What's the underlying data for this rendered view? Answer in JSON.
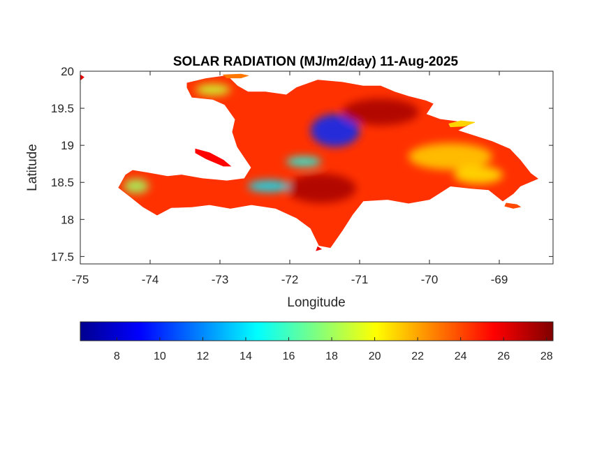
{
  "chart_data": {
    "type": "heatmap",
    "title": "SOLAR RADIATION (MJ/m2/day) 11-Aug-2025",
    "xlabel": "Longitude",
    "ylabel": "Latitude",
    "xlim": [
      -75,
      -68.23
    ],
    "ylim": [
      17.4,
      20
    ],
    "xticks": [
      -75,
      -74,
      -73,
      -72,
      -71,
      -70,
      -69
    ],
    "xtick_labels": [
      "-75",
      "-74",
      "-73",
      "-72",
      "-71",
      "-70",
      "-69"
    ],
    "yticks": [
      17.5,
      18,
      18.5,
      19,
      19.5,
      20
    ],
    "ytick_labels": [
      "17.5",
      "18",
      "18.5",
      "19",
      "19.5",
      "20"
    ],
    "colormap": "jet",
    "colorbar": {
      "placement": "bottom",
      "range": [
        6.3,
        28.3
      ],
      "ticks": [
        8,
        10,
        12,
        14,
        16,
        18,
        20,
        22,
        24,
        26,
        28
      ],
      "tick_labels": [
        "8",
        "10",
        "12",
        "14",
        "16",
        "18",
        "20",
        "22",
        "24",
        "26",
        "28"
      ]
    },
    "regions": [
      {
        "name": "main-island",
        "value": 24.5,
        "outline": [
          [
            -73.47,
            19.84
          ],
          [
            -73.2,
            19.9
          ],
          [
            -72.9,
            19.94
          ],
          [
            -72.75,
            19.8
          ],
          [
            -72.6,
            19.72
          ],
          [
            -72.35,
            19.72
          ],
          [
            -72.05,
            19.68
          ],
          [
            -71.9,
            19.78
          ],
          [
            -71.6,
            19.88
          ],
          [
            -71.25,
            19.85
          ],
          [
            -70.95,
            19.8
          ],
          [
            -70.7,
            19.8
          ],
          [
            -70.5,
            19.72
          ],
          [
            -70.3,
            19.66
          ],
          [
            -70.05,
            19.6
          ],
          [
            -69.95,
            19.56
          ],
          [
            -70.05,
            19.42
          ],
          [
            -69.85,
            19.35
          ],
          [
            -69.6,
            19.32
          ],
          [
            -69.4,
            19.3
          ],
          [
            -69.6,
            19.2
          ],
          [
            -69.1,
            19.05
          ],
          [
            -68.85,
            18.95
          ],
          [
            -68.7,
            18.8
          ],
          [
            -68.55,
            18.62
          ],
          [
            -68.45,
            18.55
          ],
          [
            -68.7,
            18.45
          ],
          [
            -68.8,
            18.35
          ],
          [
            -68.95,
            18.25
          ],
          [
            -69.15,
            18.4
          ],
          [
            -69.4,
            18.42
          ],
          [
            -69.7,
            18.45
          ],
          [
            -70.0,
            18.27
          ],
          [
            -70.3,
            18.22
          ],
          [
            -70.6,
            18.27
          ],
          [
            -70.95,
            18.25
          ],
          [
            -71.1,
            18.07
          ],
          [
            -71.25,
            17.85
          ],
          [
            -71.42,
            17.62
          ],
          [
            -71.58,
            17.65
          ],
          [
            -71.7,
            17.88
          ],
          [
            -71.9,
            18.02
          ],
          [
            -72.2,
            18.15
          ],
          [
            -72.55,
            18.2
          ],
          [
            -72.85,
            18.15
          ],
          [
            -73.15,
            18.2
          ],
          [
            -73.4,
            18.17
          ],
          [
            -73.7,
            18.16
          ],
          [
            -73.9,
            18.06
          ],
          [
            -74.1,
            18.17
          ],
          [
            -74.3,
            18.32
          ],
          [
            -74.45,
            18.43
          ],
          [
            -74.35,
            18.6
          ],
          [
            -74.25,
            18.66
          ],
          [
            -74.05,
            18.63
          ],
          [
            -73.75,
            18.58
          ],
          [
            -73.55,
            18.6
          ],
          [
            -73.25,
            18.55
          ],
          [
            -72.9,
            18.52
          ],
          [
            -72.65,
            18.55
          ],
          [
            -72.55,
            18.7
          ],
          [
            -72.75,
            18.98
          ],
          [
            -72.82,
            19.18
          ],
          [
            -72.78,
            19.35
          ],
          [
            -72.93,
            19.55
          ],
          [
            -73.1,
            19.62
          ],
          [
            -73.4,
            19.65
          ],
          [
            -73.47,
            19.78
          ]
        ]
      },
      {
        "name": "gonave-island",
        "value": 25.5,
        "outline": [
          [
            -73.35,
            18.95
          ],
          [
            -73.15,
            18.9
          ],
          [
            -72.95,
            18.8
          ],
          [
            -72.85,
            18.72
          ],
          [
            -72.95,
            18.72
          ],
          [
            -73.2,
            18.82
          ],
          [
            -73.35,
            18.9
          ]
        ]
      },
      {
        "name": "tortuga-island",
        "value": 23,
        "outline": [
          [
            -72.95,
            19.95
          ],
          [
            -72.7,
            19.96
          ],
          [
            -72.6,
            19.94
          ],
          [
            -72.7,
            19.91
          ],
          [
            -72.9,
            19.91
          ]
        ]
      },
      {
        "name": "samana-tip",
        "value": 21,
        "outline": [
          [
            -69.72,
            19.29
          ],
          [
            -69.55,
            19.33
          ],
          [
            -69.35,
            19.31
          ],
          [
            -69.5,
            19.26
          ],
          [
            -69.7,
            19.25
          ]
        ]
      },
      {
        "name": "saona-island",
        "value": 24,
        "outline": [
          [
            -68.9,
            18.22
          ],
          [
            -68.75,
            18.2
          ],
          [
            -68.7,
            18.17
          ],
          [
            -68.8,
            18.15
          ],
          [
            -68.92,
            18.18
          ]
        ]
      },
      {
        "name": "beata-island",
        "value": 26,
        "outline": [
          [
            -71.6,
            17.63
          ],
          [
            -71.55,
            17.6
          ],
          [
            -71.62,
            17.58
          ]
        ]
      },
      {
        "name": "corner-pixel",
        "value": 26,
        "outline": [
          [
            -75,
            19.95
          ],
          [
            -74.95,
            19.92
          ],
          [
            -75,
            19.88
          ]
        ]
      }
    ],
    "anomalies": [
      {
        "name": "central-cordillera-low",
        "lon": -71.35,
        "lat": 19.2,
        "value": 10,
        "rx": 0.35,
        "ry": 0.22
      },
      {
        "name": "enriquillo-high",
        "lon": -71.55,
        "lat": 18.42,
        "value": 27.5,
        "rx": 0.5,
        "ry": 0.2
      },
      {
        "name": "cibao-valley-high",
        "lon": -70.7,
        "lat": 19.45,
        "value": 27.5,
        "rx": 0.55,
        "ry": 0.18
      },
      {
        "name": "eastern-plain-moderate",
        "lon": -69.7,
        "lat": 18.85,
        "value": 21,
        "rx": 0.6,
        "ry": 0.18
      },
      {
        "name": "northwest-peninsula-moderate",
        "lon": -73.1,
        "lat": 19.75,
        "value": 19,
        "rx": 0.25,
        "ry": 0.08
      },
      {
        "name": "tiburon-west-moderate",
        "lon": -74.2,
        "lat": 18.45,
        "value": 18,
        "rx": 0.18,
        "ry": 0.1
      },
      {
        "name": "massif-selle-low",
        "lon": -72.3,
        "lat": 18.45,
        "value": 14,
        "rx": 0.3,
        "ry": 0.08
      },
      {
        "name": "central-plateau-low",
        "lon": -71.8,
        "lat": 18.78,
        "value": 15,
        "rx": 0.25,
        "ry": 0.07
      },
      {
        "name": "southeast-moderate",
        "lon": -69.3,
        "lat": 18.6,
        "value": 20.5,
        "rx": 0.35,
        "ry": 0.12
      }
    ]
  }
}
